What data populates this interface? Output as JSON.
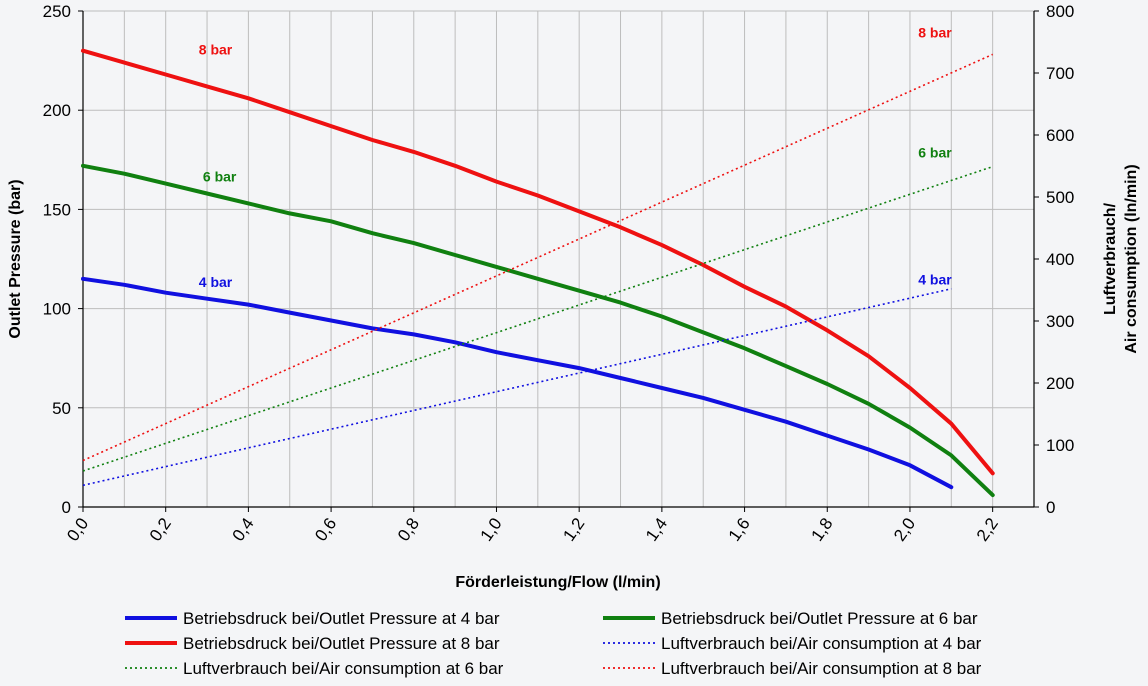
{
  "chart_data": {
    "type": "line",
    "xlabel": "Förderleistung/Flow (l/min)",
    "ylabel": "Outlet Pressure (bar)",
    "y2label_line1": "Luftverbrauch/",
    "y2label_line2": "Air consumption (ln/min)",
    "xlim": [
      0,
      2.3
    ],
    "ylim": [
      0,
      250
    ],
    "y2lim": [
      0,
      800
    ],
    "x_ticks": [
      0,
      0.2,
      0.4,
      0.6,
      0.8,
      1.0,
      1.2,
      1.4,
      1.6,
      1.8,
      2.0,
      2.2
    ],
    "x_tick_labels": [
      "0,0",
      "0,2",
      "0,4",
      "0,6",
      "0,8",
      "1,0",
      "1,2",
      "1,4",
      "1,6",
      "1,8",
      "2,0",
      "2,2"
    ],
    "y_ticks": [
      0,
      50,
      100,
      150,
      200,
      250
    ],
    "y_tick_labels": [
      "0",
      "50",
      "100",
      "150",
      "200",
      "250"
    ],
    "y2_ticks": [
      0,
      100,
      200,
      300,
      400,
      500,
      600,
      700,
      800
    ],
    "y2_tick_labels": [
      "0",
      "100",
      "200",
      "300",
      "400",
      "500",
      "600",
      "700",
      "800"
    ],
    "grid": true,
    "legend_position": "bottom",
    "colors": {
      "blue": "#1010e0",
      "green": "#108010",
      "red": "#ee1111"
    },
    "series": [
      {
        "name": "Betriebsdruck bei/Outlet Pressure at 4 bar",
        "axis": "left",
        "style": "solid",
        "color": "blue",
        "x": [
          0,
          0.1,
          0.2,
          0.3,
          0.4,
          0.5,
          0.6,
          0.7,
          0.8,
          0.9,
          1.0,
          1.1,
          1.2,
          1.3,
          1.4,
          1.5,
          1.6,
          1.7,
          1.8,
          1.9,
          2.0,
          2.1
        ],
        "values": [
          115,
          112,
          108,
          105,
          102,
          98,
          94,
          90,
          87,
          83,
          78,
          74,
          70,
          65,
          60,
          55,
          49,
          43,
          36,
          29,
          21,
          10
        ]
      },
      {
        "name": "Betriebsdruck bei/Outlet Pressure at 6 bar",
        "axis": "left",
        "style": "solid",
        "color": "green",
        "x": [
          0,
          0.1,
          0.2,
          0.3,
          0.4,
          0.5,
          0.6,
          0.7,
          0.8,
          0.9,
          1.0,
          1.1,
          1.2,
          1.3,
          1.4,
          1.5,
          1.6,
          1.7,
          1.8,
          1.9,
          2.0,
          2.1,
          2.2
        ],
        "values": [
          172,
          168,
          163,
          158,
          153,
          148,
          144,
          138,
          133,
          127,
          121,
          115,
          109,
          103,
          96,
          88,
          80,
          71,
          62,
          52,
          40,
          26,
          6
        ]
      },
      {
        "name": "Betriebsdruck bei/Outlet Pressure at 8 bar",
        "axis": "left",
        "style": "solid",
        "color": "red",
        "x": [
          0,
          0.1,
          0.2,
          0.3,
          0.4,
          0.5,
          0.6,
          0.7,
          0.8,
          0.9,
          1.0,
          1.1,
          1.2,
          1.3,
          1.4,
          1.5,
          1.6,
          1.7,
          1.8,
          1.9,
          2.0,
          2.1,
          2.2
        ],
        "values": [
          230,
          224,
          218,
          212,
          206,
          199,
          192,
          185,
          179,
          172,
          164,
          157,
          149,
          141,
          132,
          122,
          111,
          101,
          89,
          76,
          60,
          42,
          17
        ]
      },
      {
        "name": "Luftverbrauch bei/Air consumption at 4 bar",
        "axis": "right",
        "style": "dotted",
        "color": "blue",
        "x": [
          0,
          2.1
        ],
        "values": [
          35,
          352
        ]
      },
      {
        "name": "Luftverbrauch bei/Air consumption at 6 bar",
        "axis": "right",
        "style": "dotted",
        "color": "green",
        "x": [
          0,
          2.2
        ],
        "values": [
          58,
          549
        ]
      },
      {
        "name": "Luftverbrauch bei/Air consumption at 8 bar",
        "axis": "right",
        "style": "dotted",
        "color": "red",
        "x": [
          0,
          2.2
        ],
        "values": [
          75,
          730
        ]
      }
    ],
    "annotations": [
      {
        "text": "8 bar",
        "color": "red",
        "x": 0.28,
        "y": 228,
        "axis": "left"
      },
      {
        "text": "6 bar",
        "color": "green",
        "x": 0.29,
        "y": 164,
        "axis": "left"
      },
      {
        "text": "4 bar",
        "color": "blue",
        "x": 0.28,
        "y": 111,
        "axis": "left"
      },
      {
        "text": "8 bar",
        "color": "red",
        "x": 2.02,
        "y": 757,
        "axis": "right"
      },
      {
        "text": "6 bar",
        "color": "green",
        "x": 2.02,
        "y": 564,
        "axis": "right"
      },
      {
        "text": "4 bar",
        "color": "blue",
        "x": 2.02,
        "y": 359,
        "axis": "right"
      }
    ]
  }
}
